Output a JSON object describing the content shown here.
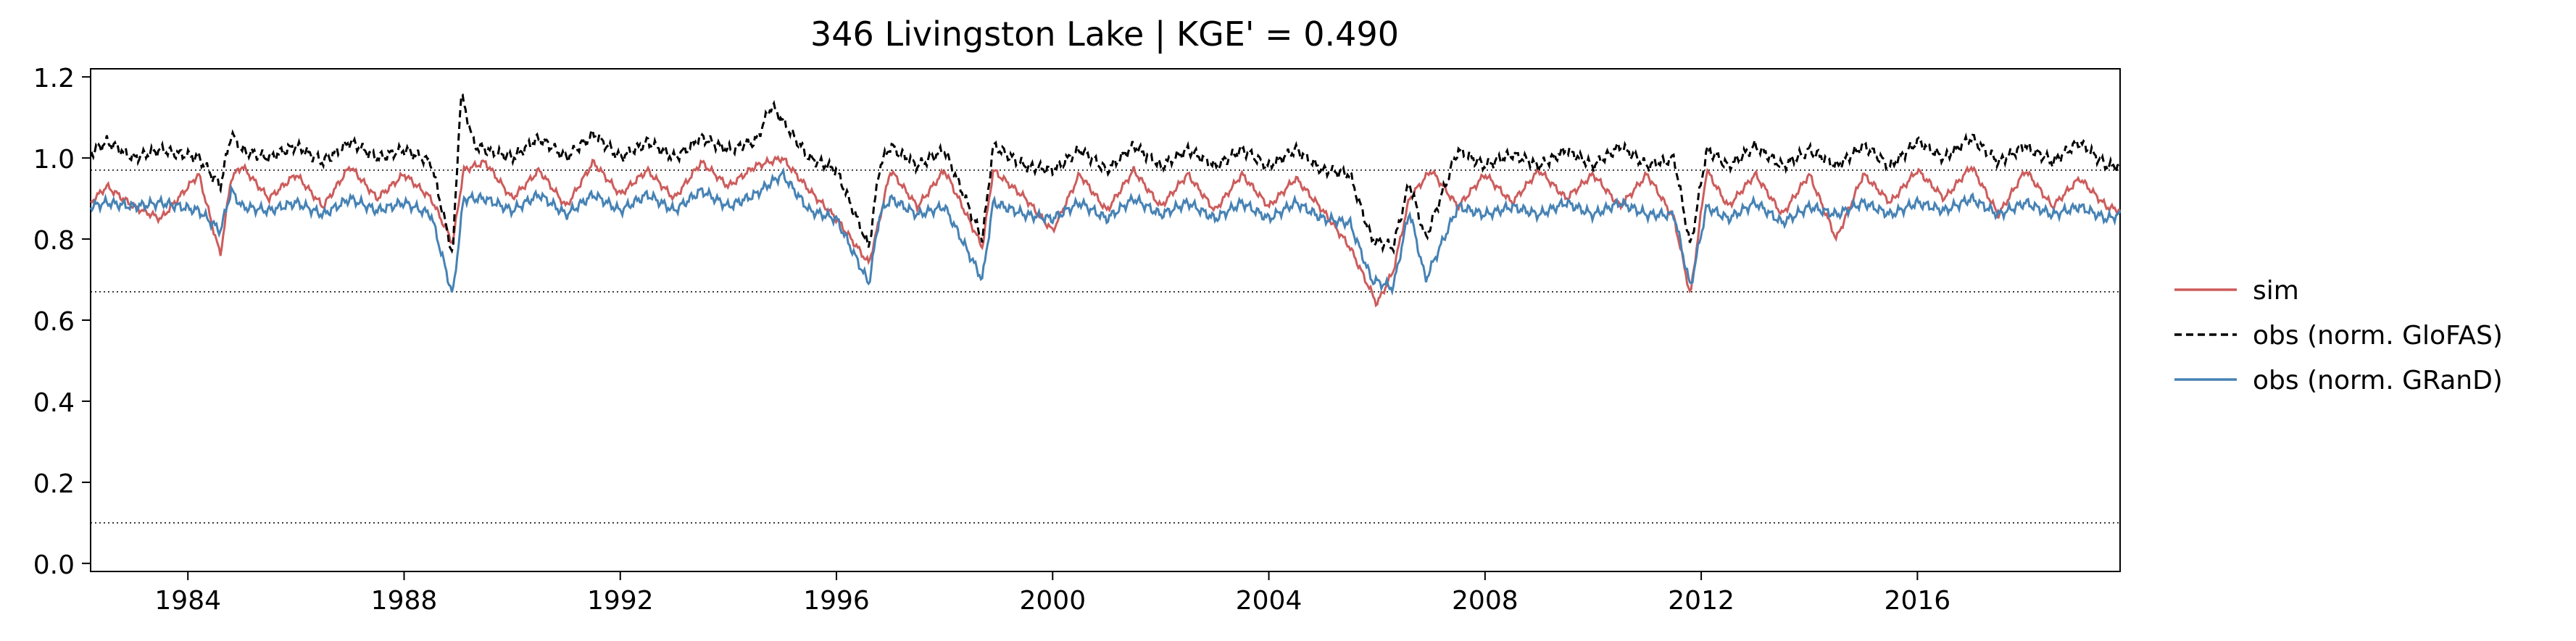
{
  "chart_data": {
    "type": "line",
    "title": "346  Livingston Lake | KGE' = 0.490",
    "xlabel": "",
    "ylabel": "",
    "xlim": [
      1982.2,
      2019.75
    ],
    "ylim": [
      -0.02,
      1.22
    ],
    "x_ticks": [
      "1984",
      "1988",
      "1992",
      "1996",
      "2000",
      "2004",
      "2008",
      "2012",
      "2016"
    ],
    "y_ticks": [
      "0.0",
      "0.2",
      "0.4",
      "0.6",
      "0.8",
      "1.0",
      "1.2"
    ],
    "reference_lines": [
      0.97,
      0.67,
      0.1
    ],
    "legend_position": "outside-right",
    "grid": false,
    "series": [
      {
        "name": "sim",
        "color": "#cd5c5c",
        "style": "solid",
        "x": [
          1982.2,
          1982.5,
          1983.0,
          1983.5,
          1984.2,
          1984.6,
          1984.8,
          1985.0,
          1985.5,
          1986.0,
          1986.5,
          1987.0,
          1987.5,
          1988.0,
          1988.5,
          1988.9,
          1989.1,
          1989.5,
          1990.0,
          1990.5,
          1991.0,
          1991.5,
          1992.0,
          1992.5,
          1993.0,
          1993.5,
          1994.0,
          1994.5,
          1995.0,
          1995.5,
          1996.0,
          1996.6,
          1996.8,
          1997.0,
          1997.5,
          1998.0,
          1998.7,
          1998.9,
          1999.5,
          2000.0,
          2000.5,
          2001.0,
          2001.5,
          2002.0,
          2002.5,
          2003.0,
          2003.5,
          2004.0,
          2004.5,
          2005.0,
          2005.5,
          2006.0,
          2006.3,
          2006.6,
          2007.0,
          2007.5,
          2008.0,
          2008.5,
          2009.0,
          2009.5,
          2010.0,
          2010.5,
          2011.0,
          2011.5,
          2011.8,
          2012.1,
          2012.5,
          2013.0,
          2013.5,
          2014.0,
          2014.5,
          2015.0,
          2015.5,
          2016.0,
          2016.5,
          2017.0,
          2017.5,
          2018.0,
          2018.5,
          2019.0,
          2019.5,
          2019.75
        ],
        "y": [
          0.89,
          0.93,
          0.88,
          0.85,
          0.96,
          0.76,
          0.95,
          0.98,
          0.9,
          0.96,
          0.88,
          0.98,
          0.9,
          0.96,
          0.9,
          0.79,
          0.97,
          0.99,
          0.9,
          0.97,
          0.88,
          0.99,
          0.91,
          0.97,
          0.9,
          0.99,
          0.93,
          0.98,
          1.0,
          0.92,
          0.85,
          0.74,
          0.85,
          0.97,
          0.88,
          0.97,
          0.78,
          0.97,
          0.9,
          0.82,
          0.96,
          0.87,
          0.97,
          0.88,
          0.96,
          0.87,
          0.96,
          0.88,
          0.95,
          0.87,
          0.78,
          0.64,
          0.72,
          0.9,
          0.97,
          0.88,
          0.96,
          0.89,
          0.97,
          0.9,
          0.96,
          0.88,
          0.96,
          0.85,
          0.66,
          0.97,
          0.88,
          0.96,
          0.86,
          0.96,
          0.8,
          0.96,
          0.89,
          0.97,
          0.9,
          0.98,
          0.86,
          0.97,
          0.88,
          0.95,
          0.88,
          0.87
        ]
      },
      {
        "name": "obs (norm. GloFAS)",
        "color": "#000000",
        "style": "dashed",
        "x": [
          1982.2,
          1982.5,
          1983.0,
          1983.5,
          1984.2,
          1984.6,
          1984.8,
          1985.0,
          1985.5,
          1986.0,
          1986.5,
          1987.0,
          1987.5,
          1988.0,
          1988.5,
          1988.9,
          1989.05,
          1989.3,
          1990.0,
          1990.5,
          1991.0,
          1991.5,
          1992.0,
          1992.5,
          1993.0,
          1993.5,
          1994.0,
          1994.5,
          1994.8,
          1995.5,
          1996.0,
          1996.6,
          1996.8,
          1997.0,
          1997.5,
          1998.0,
          1998.7,
          1998.9,
          1999.5,
          2000.0,
          2000.5,
          2001.0,
          2001.5,
          2002.0,
          2002.5,
          2003.0,
          2003.5,
          2004.0,
          2004.5,
          2005.0,
          2005.5,
          2005.9,
          2006.3,
          2006.6,
          2006.9,
          2007.5,
          2008.0,
          2008.5,
          2009.0,
          2009.5,
          2010.0,
          2010.5,
          2011.0,
          2011.5,
          2011.8,
          2012.1,
          2012.5,
          2013.0,
          2013.5,
          2014.0,
          2014.5,
          2015.0,
          2015.5,
          2016.0,
          2016.5,
          2017.0,
          2017.5,
          2018.0,
          2018.5,
          2019.0,
          2019.5,
          2019.75
        ],
        "y": [
          1.01,
          1.04,
          1.0,
          1.02,
          1.0,
          0.93,
          1.06,
          1.02,
          1.0,
          1.03,
          0.99,
          1.04,
          1.0,
          1.02,
          0.99,
          0.76,
          1.16,
          1.03,
          1.0,
          1.05,
          1.0,
          1.06,
          1.0,
          1.04,
          1.0,
          1.05,
          1.02,
          1.04,
          1.13,
          1.0,
          0.97,
          0.78,
          0.98,
          1.03,
          0.98,
          1.02,
          0.8,
          1.03,
          0.98,
          0.97,
          1.02,
          0.97,
          1.03,
          0.98,
          1.02,
          0.98,
          1.02,
          0.98,
          1.02,
          0.97,
          0.96,
          0.8,
          0.78,
          0.94,
          0.8,
          1.02,
          0.98,
          1.01,
          0.98,
          1.02,
          0.98,
          1.03,
          0.98,
          1.0,
          0.78,
          1.02,
          0.98,
          1.03,
          0.98,
          1.02,
          0.98,
          1.03,
          0.98,
          1.04,
          1.0,
          1.05,
          0.99,
          1.03,
          0.99,
          1.04,
          0.98,
          0.98
        ]
      },
      {
        "name": "obs (norm. GRanD)",
        "color": "#4682b4",
        "style": "solid",
        "x": [
          1982.2,
          1982.5,
          1983.0,
          1983.5,
          1984.2,
          1984.6,
          1984.8,
          1985.0,
          1985.5,
          1986.0,
          1986.5,
          1987.0,
          1987.5,
          1988.0,
          1988.5,
          1988.9,
          1989.1,
          1989.5,
          1990.0,
          1990.5,
          1991.0,
          1991.5,
          1992.0,
          1992.5,
          1993.0,
          1993.5,
          1994.0,
          1994.5,
          1995.0,
          1995.5,
          1996.0,
          1996.6,
          1996.8,
          1997.0,
          1997.5,
          1998.0,
          1998.7,
          1998.9,
          1999.5,
          2000.0,
          2000.5,
          2001.0,
          2001.5,
          2002.0,
          2002.5,
          2003.0,
          2003.5,
          2004.0,
          2004.5,
          2005.0,
          2005.5,
          2005.9,
          2006.3,
          2006.6,
          2006.9,
          2007.5,
          2008.0,
          2008.5,
          2009.0,
          2009.5,
          2010.0,
          2010.5,
          2011.0,
          2011.5,
          2011.8,
          2012.1,
          2012.5,
          2013.0,
          2013.5,
          2014.0,
          2014.5,
          2015.0,
          2015.5,
          2016.0,
          2016.5,
          2017.0,
          2017.5,
          2018.0,
          2018.5,
          2019.0,
          2019.5,
          2019.75
        ],
        "y": [
          0.88,
          0.89,
          0.88,
          0.89,
          0.87,
          0.82,
          0.92,
          0.88,
          0.87,
          0.89,
          0.86,
          0.9,
          0.87,
          0.89,
          0.86,
          0.66,
          0.9,
          0.9,
          0.87,
          0.91,
          0.86,
          0.91,
          0.87,
          0.91,
          0.87,
          0.92,
          0.88,
          0.91,
          0.96,
          0.87,
          0.85,
          0.69,
          0.86,
          0.9,
          0.86,
          0.88,
          0.7,
          0.89,
          0.86,
          0.85,
          0.89,
          0.85,
          0.9,
          0.86,
          0.89,
          0.85,
          0.89,
          0.85,
          0.89,
          0.85,
          0.84,
          0.7,
          0.68,
          0.87,
          0.7,
          0.88,
          0.86,
          0.88,
          0.86,
          0.89,
          0.86,
          0.89,
          0.86,
          0.86,
          0.68,
          0.88,
          0.85,
          0.89,
          0.84,
          0.88,
          0.86,
          0.89,
          0.86,
          0.89,
          0.87,
          0.9,
          0.86,
          0.89,
          0.86,
          0.88,
          0.85,
          0.86
        ]
      }
    ]
  }
}
